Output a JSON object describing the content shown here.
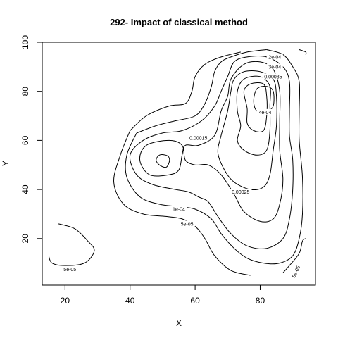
{
  "chart_data": {
    "type": "contour",
    "title": "292- Impact of classical method",
    "xlabel": "X",
    "ylabel": "Y",
    "xlim": [
      13,
      97
    ],
    "ylim": [
      1,
      100
    ],
    "x_ticks": [
      20,
      40,
      60,
      80
    ],
    "y_ticks": [
      20,
      40,
      60,
      80,
      100
    ],
    "grid": false,
    "contours": [
      {
        "level": "5e-05",
        "label": "5e-05",
        "points": [
          [
            18,
            26
          ],
          [
            23,
            24
          ],
          [
            27,
            19
          ],
          [
            29,
            15
          ],
          [
            26,
            10
          ],
          [
            20,
            9
          ],
          [
            16,
            10
          ],
          [
            15,
            13
          ]
        ]
      },
      {
        "level": "5e-05",
        "label": "5e-05",
        "points": [
          [
            40,
            64
          ],
          [
            45,
            70
          ],
          [
            52,
            74
          ],
          [
            57,
            75
          ],
          [
            59,
            80
          ],
          [
            60,
            86
          ],
          [
            63,
            91
          ],
          [
            68,
            94
          ],
          [
            74,
            96
          ]
        ]
      },
      {
        "level": "5e-05",
        "label": "5e-05",
        "points": [
          [
            40,
            64
          ],
          [
            37,
            54
          ],
          [
            35,
            43
          ],
          [
            38,
            34
          ],
          [
            44,
            30
          ],
          [
            51,
            29
          ],
          [
            56,
            28
          ],
          [
            60,
            25
          ],
          [
            63,
            20
          ],
          [
            66,
            13
          ],
          [
            71,
            7
          ],
          [
            77,
            5
          ]
        ]
      },
      {
        "level": "5e-05",
        "label": "5e-05",
        "points": [
          [
            87,
            6
          ],
          [
            89,
            9
          ],
          [
            92,
            14
          ],
          [
            93,
            19
          ],
          [
            94,
            20
          ]
        ]
      },
      {
        "level": "5e-05",
        "label": "5e-05",
        "points": [
          [
            92,
            97
          ],
          [
            94,
            96
          ],
          [
            94,
            95
          ]
        ]
      },
      {
        "level": "1e-04",
        "label": "1e-04",
        "points": [
          [
            42,
            63
          ],
          [
            48,
            66
          ],
          [
            54,
            68
          ],
          [
            60,
            70
          ],
          [
            63,
            75
          ],
          [
            65,
            82
          ],
          [
            66,
            88
          ],
          [
            68,
            92
          ],
          [
            71,
            94
          ],
          [
            76,
            96
          ],
          [
            82,
            97
          ]
        ]
      },
      {
        "level": "1e-04",
        "label": "1e-04",
        "points": [
          [
            42,
            63
          ],
          [
            39,
            54
          ],
          [
            39,
            45
          ],
          [
            43,
            37
          ],
          [
            49,
            34
          ],
          [
            55,
            33
          ],
          [
            60,
            32
          ],
          [
            65,
            28
          ],
          [
            68,
            22
          ],
          [
            72,
            16
          ],
          [
            76,
            12
          ],
          [
            81,
            10
          ],
          [
            86,
            10
          ],
          [
            90,
            13
          ],
          [
            92,
            20
          ],
          [
            93,
            30
          ],
          [
            93,
            45
          ],
          [
            92,
            60
          ],
          [
            92,
            72
          ],
          [
            92,
            84
          ],
          [
            90,
            90
          ],
          [
            87,
            95
          ],
          [
            82,
            97
          ]
        ]
      },
      {
        "level": "0.00015",
        "label": "0.00015",
        "points": [
          [
            44,
            60
          ],
          [
            40,
            54
          ],
          [
            42,
            46
          ],
          [
            47,
            42
          ],
          [
            54,
            40
          ],
          [
            58,
            39
          ],
          [
            61,
            37
          ],
          [
            64,
            35
          ],
          [
            67,
            29
          ],
          [
            71,
            22
          ],
          [
            76,
            17
          ],
          [
            82,
            16
          ],
          [
            87,
            20
          ],
          [
            89,
            28
          ],
          [
            90,
            40
          ],
          [
            90,
            52
          ],
          [
            89,
            62
          ],
          [
            89,
            72
          ],
          [
            89,
            84
          ],
          [
            87,
            90
          ],
          [
            82,
            94
          ],
          [
            76,
            94
          ],
          [
            72,
            92
          ],
          [
            70,
            86
          ],
          [
            68,
            80
          ],
          [
            66,
            74
          ],
          [
            62,
            68
          ],
          [
            56,
            64
          ],
          [
            50,
            63
          ],
          [
            44,
            60
          ]
        ]
      },
      {
        "level": "2e-04",
        "label": "2e-04",
        "points": [
          [
            56,
            54
          ],
          [
            55,
            48
          ],
          [
            52,
            46
          ],
          [
            46,
            46
          ],
          [
            43,
            52
          ],
          [
            45,
            58
          ],
          [
            52,
            60
          ],
          [
            56,
            58
          ],
          [
            57,
            52
          ],
          [
            60,
            50
          ],
          [
            64,
            50
          ],
          [
            68,
            46
          ],
          [
            72,
            38
          ],
          [
            75,
            31
          ],
          [
            80,
            27
          ],
          [
            84,
            28
          ],
          [
            86,
            34
          ],
          [
            87,
            44
          ],
          [
            86,
            56
          ],
          [
            86,
            68
          ],
          [
            86,
            80
          ],
          [
            84,
            89
          ],
          [
            80,
            92
          ],
          [
            75,
            91
          ],
          [
            71,
            85
          ],
          [
            70,
            78
          ],
          [
            68,
            72
          ],
          [
            66,
            62
          ],
          [
            61,
            58
          ],
          [
            57,
            58
          ],
          [
            56,
            54
          ]
        ]
      },
      {
        "level": "0.00025",
        "label": "0.00025",
        "points": [
          [
            68,
            62
          ],
          [
            67,
            55
          ],
          [
            69,
            48
          ],
          [
            72,
            43
          ],
          [
            77,
            40
          ],
          [
            81,
            41
          ],
          [
            83,
            46
          ],
          [
            84,
            56
          ],
          [
            85,
            66
          ],
          [
            85,
            78
          ],
          [
            84,
            85
          ],
          [
            80,
            88
          ],
          [
            75,
            88
          ],
          [
            72,
            85
          ],
          [
            71,
            80
          ],
          [
            70,
            72
          ],
          [
            68,
            62
          ]
        ]
      },
      {
        "level": "3e-04",
        "label": "3e-04",
        "points": [
          [
            74,
            66
          ],
          [
            73,
            60
          ],
          [
            75,
            56
          ],
          [
            79,
            54
          ],
          [
            82,
            56
          ],
          [
            83,
            64
          ],
          [
            83,
            74
          ],
          [
            83,
            82
          ],
          [
            80,
            86
          ],
          [
            75,
            85
          ],
          [
            73,
            80
          ],
          [
            73,
            72
          ],
          [
            74,
            66
          ]
        ]
      },
      {
        "level": "0.00035",
        "label": "0.00035",
        "points": [
          [
            76,
            73
          ],
          [
            76,
            67
          ],
          [
            78,
            64
          ],
          [
            81,
            64
          ],
          [
            82,
            70
          ],
          [
            82,
            78
          ],
          [
            81,
            83
          ],
          [
            77,
            83
          ],
          [
            75,
            80
          ],
          [
            76,
            73
          ]
        ]
      },
      {
        "level": "4e-04",
        "label": "4e-04",
        "points": [
          [
            79,
            72
          ],
          [
            78,
            76
          ],
          [
            79,
            81
          ],
          [
            82,
            82
          ],
          [
            84,
            80
          ],
          [
            84,
            74
          ],
          [
            82,
            72
          ],
          [
            79,
            72
          ]
        ]
      },
      {
        "level": "4e-04",
        "label": "",
        "points": [
          [
            49,
            54
          ],
          [
            48,
            52
          ],
          [
            49,
            50
          ],
          [
            51,
            49
          ],
          [
            52,
            51
          ],
          [
            52,
            53
          ],
          [
            51,
            54
          ],
          [
            49,
            54
          ]
        ]
      }
    ],
    "labels": [
      {
        "text": "5e-05",
        "x": 21.5,
        "y": 7.5
      },
      {
        "text": "5e-05",
        "x": 57.5,
        "y": 26
      },
      {
        "text": "5e-05",
        "x": 91,
        "y": 6.5,
        "angle": -65
      },
      {
        "text": "1e-04",
        "x": 55,
        "y": 32
      },
      {
        "text": "0.00015",
        "x": 61,
        "y": 61
      },
      {
        "text": "0.00025",
        "x": 74,
        "y": 39
      },
      {
        "text": "2e-04",
        "x": 84.5,
        "y": 94
      },
      {
        "text": "3e-04",
        "x": 84.5,
        "y": 90
      },
      {
        "text": "0.00035",
        "x": 84,
        "y": 86
      },
      {
        "text": "4e-04",
        "x": 81.5,
        "y": 71.5
      }
    ]
  }
}
